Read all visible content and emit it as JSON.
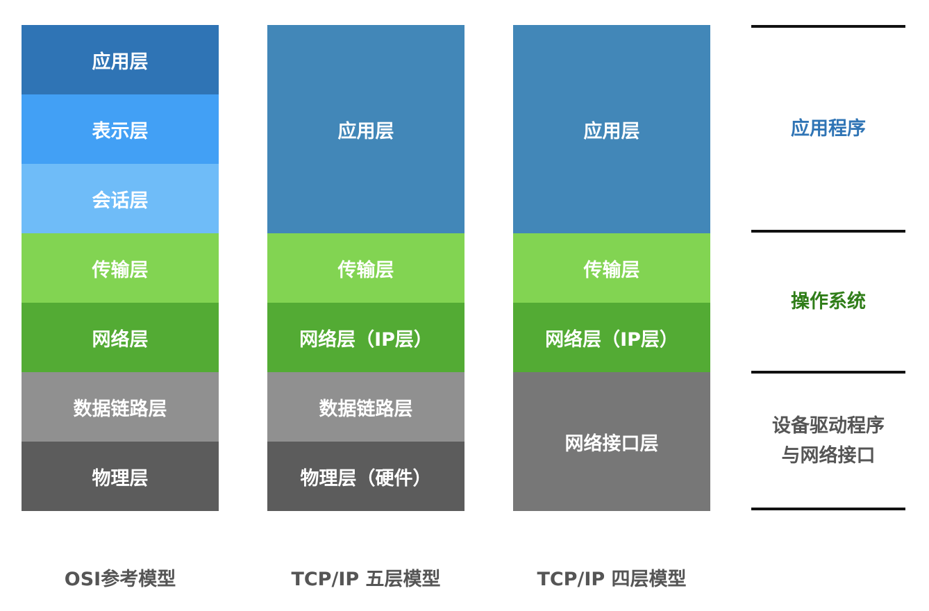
{
  "osi_model": {
    "caption": "OSI参考模型",
    "layers": [
      "应用层",
      "表示层",
      "会话层",
      "传输层",
      "网络层",
      "数据链路层",
      "物理层"
    ]
  },
  "tcpip_five_layer": {
    "caption": "TCP/IP 五层模型",
    "layers": [
      "应用层",
      "传输层",
      "网络层（IP层）",
      "数据链路层",
      "物理层（硬件）"
    ]
  },
  "tcpip_four_layer": {
    "caption": "TCP/IP 四层模型",
    "layers": [
      "应用层",
      "传输层",
      "网络层（IP层）",
      "网络接口层"
    ]
  },
  "scope_labels": {
    "application": "应用程序",
    "os": "操作系统",
    "driver_line1": "设备驱动程序",
    "driver_line2": "与网络接口"
  },
  "colors": {
    "application_label": "#2f74b5",
    "os_label": "#2f7d18",
    "driver_label": "#555555"
  }
}
